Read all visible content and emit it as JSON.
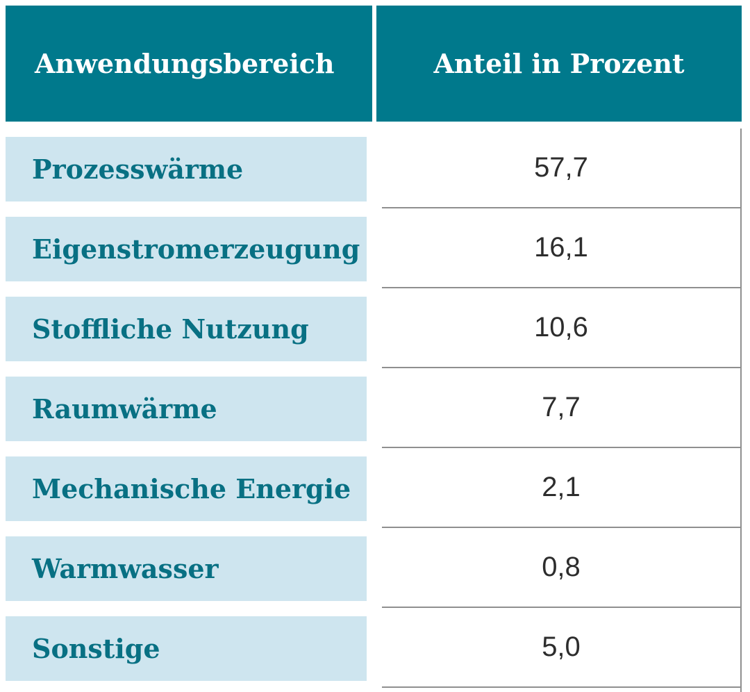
{
  "table": {
    "columns": [
      {
        "label": "Anwendungsbereich"
      },
      {
        "label": "Anteil in Prozent"
      }
    ],
    "rows": [
      {
        "label": "Prozesswärme",
        "value": "57,7"
      },
      {
        "label": "Eigenstromerzeugung",
        "value": "16,1"
      },
      {
        "label": "Stoffliche Nutzung",
        "value": "10,6"
      },
      {
        "label": "Raumwärme",
        "value": "7,7"
      },
      {
        "label": "Mechanische Energie",
        "value": "2,1"
      },
      {
        "label": "Warmwasser",
        "value": "0,8"
      },
      {
        "label": "Sonstige",
        "value": "5,0"
      }
    ]
  },
  "colors": {
    "header_background": "#00798C",
    "header_text": "#FFFFFF",
    "row_background": "#CEE5EF",
    "row_label_text": "#087083",
    "value_text": "#2D2D2D",
    "divider_line": "#8F8F8F"
  },
  "chart_data": {
    "type": "table",
    "title": "",
    "columns": [
      "Anwendungsbereich",
      "Anteil in Prozent"
    ],
    "categories": [
      "Prozesswärme",
      "Eigenstromerzeugung",
      "Stoffliche Nutzung",
      "Raumwärme",
      "Mechanische Energie",
      "Warmwasser",
      "Sonstige"
    ],
    "values": [
      57.7,
      16.1,
      10.6,
      7.7,
      2.1,
      0.8,
      5.0
    ],
    "value_display": [
      "57,7",
      "16,1",
      "10,6",
      "7,7",
      "2,1",
      "0,8",
      "5,0"
    ],
    "unit": "percent",
    "layout": "two-column striped table, header row teal, label cells light blue, value cells white with gray rule separators"
  }
}
